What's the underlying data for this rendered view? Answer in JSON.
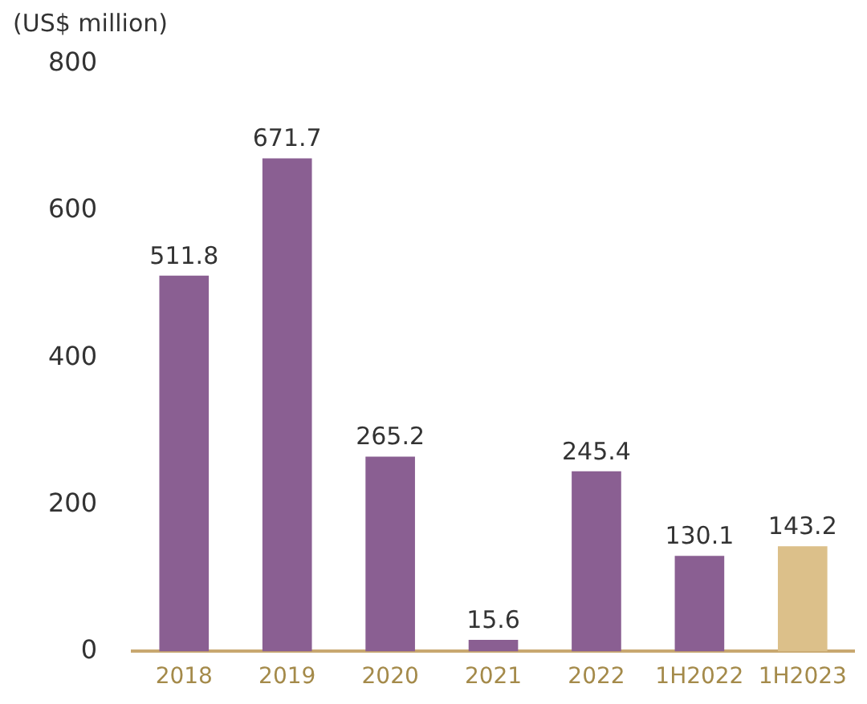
{
  "chart_data": {
    "type": "bar",
    "ylabel": "(US$ million)",
    "categories": [
      "2018",
      "2019",
      "2020",
      "2021",
      "2022",
      "1H2022",
      "1H2023"
    ],
    "values": [
      511.8,
      671.7,
      265.2,
      15.6,
      245.4,
      130.1,
      143.2
    ],
    "colors": [
      "#8a5f92",
      "#8a5f92",
      "#8a5f92",
      "#8a5f92",
      "#8a5f92",
      "#8a5f92",
      "#dcc08a"
    ],
    "ylim": [
      0,
      800
    ],
    "yticks": [
      0,
      200,
      400,
      600,
      800
    ],
    "grid": false,
    "data_labels": true
  }
}
